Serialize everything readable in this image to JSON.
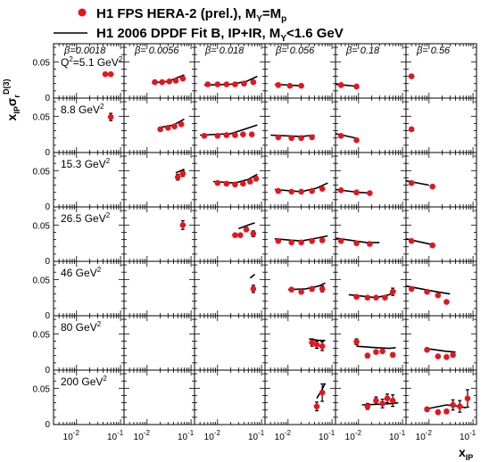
{
  "legend": {
    "data_label": "H1 FPS HERA-2 (prel.),  M",
    "data_sub1": "Y",
    "data_mid": "=M",
    "data_sub2": "p",
    "fit_label": "H1 2006 DPDF Fit B, IP+IR,  M",
    "fit_sub": "Y",
    "fit_tail": "<1.6 GeV"
  },
  "axis": {
    "y_main": "x",
    "y_sub": "IP",
    "y_sigma": "σ",
    "y_sigma_sub": "r",
    "y_sup": "D(3)",
    "x_main": "x",
    "x_sub": "IP",
    "y_ticks": [
      "0",
      "0.05"
    ],
    "x_tick_base": "10",
    "x_tick_exps": [
      "-2",
      "-1"
    ]
  },
  "colors": {
    "data": "#e8141c",
    "fit": "#000000",
    "frame": "#000000"
  },
  "chart_data": {
    "type": "scatter",
    "xscale": "log",
    "x_range": [
      0.003,
      0.12
    ],
    "y_range": [
      0,
      0.075
    ],
    "columns_beta": [
      "β=0.0018",
      "β= 0.0056",
      "β= 0.018",
      "β= 0.056",
      "β= 0.18",
      "β= 0.56"
    ],
    "rows_q2": [
      {
        "label": "Q",
        "sup": "2",
        "tail": "=5.1 GeV",
        "sup2": "2"
      },
      {
        "label": "8.8 GeV",
        "sup": "2"
      },
      {
        "label": "15.3 GeV",
        "sup": "2"
      },
      {
        "label": "26.5 GeV",
        "sup": "2"
      },
      {
        "label": "46 GeV",
        "sup": "2"
      },
      {
        "label": "80 GeV",
        "sup": "2"
      },
      {
        "label": "200 GeV",
        "sup": "2"
      }
    ],
    "cells": [
      {
        "row": 0,
        "col": 0,
        "points": [
          [
            0.045,
            0.033,
            0.002
          ],
          [
            0.06,
            0.033,
            0.002
          ]
        ],
        "fit": []
      },
      {
        "row": 0,
        "col": 1,
        "points": [
          [
            0.015,
            0.022,
            0.0015
          ],
          [
            0.022,
            0.022,
            0.0015
          ],
          [
            0.032,
            0.023,
            0.0015
          ],
          [
            0.045,
            0.024,
            0.0015
          ],
          [
            0.065,
            0.027,
            0.002
          ]
        ],
        "fit": [
          [
            0.013,
            0.021
          ],
          [
            0.03,
            0.023
          ],
          [
            0.07,
            0.032
          ]
        ]
      },
      {
        "row": 0,
        "col": 2,
        "points": [
          [
            0.006,
            0.019,
            0.0015
          ],
          [
            0.01,
            0.019,
            0.0015
          ],
          [
            0.016,
            0.019,
            0.0015
          ],
          [
            0.025,
            0.019,
            0.0015
          ],
          [
            0.04,
            0.02,
            0.0015
          ],
          [
            0.065,
            0.022,
            0.002
          ]
        ],
        "fit": [
          [
            0.005,
            0.018
          ],
          [
            0.02,
            0.019
          ],
          [
            0.045,
            0.023
          ],
          [
            0.08,
            0.03
          ]
        ]
      },
      {
        "row": 0,
        "col": 3,
        "points": [
          [
            0.006,
            0.018,
            0.0015
          ],
          [
            0.011,
            0.017,
            0.0015
          ],
          [
            0.02,
            0.017,
            0.0015
          ]
        ],
        "fit": [
          [
            0.005,
            0.019
          ],
          [
            0.02,
            0.017
          ]
        ]
      },
      {
        "row": 0,
        "col": 4,
        "points": [
          [
            0.004,
            0.018,
            0.0015
          ],
          [
            0.009,
            0.016,
            0.0015
          ]
        ],
        "fit": [
          [
            0.003,
            0.019
          ],
          [
            0.01,
            0.016
          ]
        ]
      },
      {
        "row": 0,
        "col": 5,
        "points": [
          [
            0.004,
            0.03,
            0.002
          ]
        ],
        "fit": []
      },
      {
        "row": 1,
        "col": 0,
        "points": [
          [
            0.06,
            0.049,
            0.005
          ]
        ],
        "fit": []
      },
      {
        "row": 1,
        "col": 1,
        "points": [
          [
            0.02,
            0.032,
            0.002
          ],
          [
            0.03,
            0.034,
            0.002
          ],
          [
            0.042,
            0.036,
            0.002
          ],
          [
            0.06,
            0.039,
            0.002
          ]
        ],
        "fit": [
          [
            0.018,
            0.034
          ],
          [
            0.04,
            0.038
          ],
          [
            0.07,
            0.046
          ]
        ]
      },
      {
        "row": 1,
        "col": 2,
        "points": [
          [
            0.005,
            0.023,
            0.0015
          ],
          [
            0.01,
            0.023,
            0.0015
          ],
          [
            0.016,
            0.024,
            0.0015
          ],
          [
            0.025,
            0.024,
            0.0015
          ],
          [
            0.038,
            0.025,
            0.0015
          ],
          [
            0.06,
            0.025,
            0.0015
          ]
        ],
        "fit": [
          [
            0.004,
            0.024
          ],
          [
            0.02,
            0.026
          ],
          [
            0.045,
            0.033
          ],
          [
            0.08,
            0.038
          ]
        ]
      },
      {
        "row": 1,
        "col": 3,
        "points": [
          [
            0.006,
            0.021,
            0.0015
          ],
          [
            0.012,
            0.02,
            0.0015
          ],
          [
            0.02,
            0.02,
            0.0015
          ],
          [
            0.035,
            0.021,
            0.0015
          ]
        ],
        "fit": [
          [
            0.004,
            0.024
          ],
          [
            0.02,
            0.022
          ],
          [
            0.04,
            0.024
          ]
        ]
      },
      {
        "row": 1,
        "col": 4,
        "points": [
          [
            0.004,
            0.023,
            0.0015
          ],
          [
            0.009,
            0.017,
            0.0015
          ]
        ],
        "fit": [
          [
            0.003,
            0.026
          ],
          [
            0.01,
            0.019
          ]
        ]
      },
      {
        "row": 1,
        "col": 5,
        "points": [
          [
            0.004,
            0.032,
            0.002
          ]
        ],
        "fit": []
      },
      {
        "row": 2,
        "col": 1,
        "points": [
          [
            0.05,
            0.041,
            0.004
          ],
          [
            0.065,
            0.046,
            0.004
          ]
        ],
        "fit": [
          [
            0.045,
            0.047
          ],
          [
            0.07,
            0.052
          ]
        ]
      },
      {
        "row": 2,
        "col": 2,
        "points": [
          [
            0.01,
            0.033,
            0.002
          ],
          [
            0.016,
            0.032,
            0.002
          ],
          [
            0.025,
            0.031,
            0.002
          ],
          [
            0.038,
            0.032,
            0.002
          ],
          [
            0.055,
            0.035,
            0.003
          ],
          [
            0.075,
            0.039,
            0.003
          ]
        ],
        "fit": [
          [
            0.008,
            0.035
          ],
          [
            0.025,
            0.033
          ],
          [
            0.05,
            0.038
          ],
          [
            0.08,
            0.045
          ]
        ]
      },
      {
        "row": 2,
        "col": 3,
        "points": [
          [
            0.006,
            0.022,
            0.0015
          ],
          [
            0.012,
            0.021,
            0.0015
          ],
          [
            0.02,
            0.021,
            0.0015
          ],
          [
            0.035,
            0.022,
            0.0015
          ],
          [
            0.06,
            0.025,
            0.002
          ]
        ],
        "fit": [
          [
            0.005,
            0.024
          ],
          [
            0.02,
            0.021
          ],
          [
            0.045,
            0.026
          ],
          [
            0.08,
            0.033
          ]
        ]
      },
      {
        "row": 2,
        "col": 4,
        "points": [
          [
            0.004,
            0.023,
            0.0015
          ],
          [
            0.009,
            0.02,
            0.0015
          ],
          [
            0.018,
            0.019,
            0.0015
          ]
        ],
        "fit": [
          [
            0.003,
            0.024
          ],
          [
            0.01,
            0.02
          ],
          [
            0.02,
            0.019
          ]
        ]
      },
      {
        "row": 2,
        "col": 5,
        "points": [
          [
            0.004,
            0.033,
            0.002
          ],
          [
            0.012,
            0.028,
            0.002
          ]
        ],
        "fit": [
          [
            0.003,
            0.036
          ],
          [
            0.01,
            0.03
          ]
        ]
      },
      {
        "row": 3,
        "col": 1,
        "points": [
          [
            0.065,
            0.05,
            0.006
          ]
        ],
        "fit": []
      },
      {
        "row": 3,
        "col": 2,
        "points": [
          [
            0.025,
            0.036,
            0.002
          ],
          [
            0.033,
            0.036,
            0.002
          ],
          [
            0.045,
            0.044,
            0.003
          ],
          [
            0.065,
            0.038,
            0.004
          ]
        ],
        "fit": [
          [
            0.03,
            0.045
          ],
          [
            0.05,
            0.05
          ],
          [
            0.07,
            0.053
          ]
        ]
      },
      {
        "row": 3,
        "col": 3,
        "points": [
          [
            0.006,
            0.028,
            0.002
          ],
          [
            0.012,
            0.026,
            0.002
          ],
          [
            0.02,
            0.026,
            0.002
          ],
          [
            0.035,
            0.028,
            0.003
          ],
          [
            0.06,
            0.029,
            0.003
          ]
        ],
        "fit": [
          [
            0.005,
            0.031
          ],
          [
            0.02,
            0.028
          ],
          [
            0.045,
            0.032
          ],
          [
            0.08,
            0.035
          ]
        ]
      },
      {
        "row": 3,
        "col": 4,
        "points": [
          [
            0.004,
            0.028,
            0.002
          ],
          [
            0.009,
            0.025,
            0.002
          ],
          [
            0.018,
            0.024,
            0.002
          ]
        ],
        "fit": [
          [
            0.003,
            0.032
          ],
          [
            0.015,
            0.026
          ],
          [
            0.03,
            0.026
          ]
        ]
      },
      {
        "row": 3,
        "col": 5,
        "points": [
          [
            0.004,
            0.028,
            0.002
          ],
          [
            0.012,
            0.022,
            0.002
          ]
        ],
        "fit": [
          [
            0.003,
            0.031
          ],
          [
            0.012,
            0.023
          ]
        ]
      },
      {
        "row": 4,
        "col": 2,
        "points": [
          [
            0.065,
            0.037,
            0.005
          ]
        ],
        "fit": [
          [
            0.055,
            0.052
          ],
          [
            0.07,
            0.057
          ]
        ]
      },
      {
        "row": 4,
        "col": 3,
        "points": [
          [
            0.012,
            0.036,
            0.002
          ],
          [
            0.02,
            0.033,
            0.003
          ],
          [
            0.035,
            0.037,
            0.003
          ],
          [
            0.06,
            0.037,
            0.004
          ]
        ],
        "fit": [
          [
            0.01,
            0.036
          ],
          [
            0.025,
            0.037
          ],
          [
            0.05,
            0.041
          ],
          [
            0.07,
            0.045
          ]
        ]
      },
      {
        "row": 4,
        "col": 4,
        "points": [
          [
            0.009,
            0.026,
            0.002
          ],
          [
            0.016,
            0.025,
            0.002
          ],
          [
            0.025,
            0.025,
            0.002
          ],
          [
            0.04,
            0.025,
            0.002
          ],
          [
            0.06,
            0.033,
            0.005
          ]
        ],
        "fit": [
          [
            0.006,
            0.029
          ],
          [
            0.025,
            0.025
          ],
          [
            0.05,
            0.029
          ],
          [
            0.07,
            0.035
          ]
        ]
      },
      {
        "row": 4,
        "col": 5,
        "points": [
          [
            0.004,
            0.037,
            0.002
          ],
          [
            0.009,
            0.033,
            0.002
          ],
          [
            0.016,
            0.028,
            0.002
          ],
          [
            0.025,
            0.019,
            0.002
          ]
        ],
        "fit": [
          [
            0.003,
            0.041
          ],
          [
            0.015,
            0.033
          ],
          [
            0.03,
            0.03
          ]
        ]
      },
      {
        "row": 5,
        "col": 3,
        "points": [
          [
            0.035,
            0.038,
            0.005
          ],
          [
            0.045,
            0.035,
            0.005
          ],
          [
            0.06,
            0.033,
            0.006
          ]
        ],
        "fit": [
          [
            0.03,
            0.043
          ],
          [
            0.05,
            0.041
          ],
          [
            0.07,
            0.041
          ]
        ]
      },
      {
        "row": 5,
        "col": 4,
        "points": [
          [
            0.009,
            0.039,
            0.004
          ],
          [
            0.016,
            0.02,
            0.003
          ],
          [
            0.025,
            0.025,
            0.002
          ],
          [
            0.035,
            0.026,
            0.002
          ],
          [
            0.06,
            0.021,
            0.003
          ]
        ],
        "fit": [
          [
            0.009,
            0.033
          ],
          [
            0.025,
            0.031
          ],
          [
            0.05,
            0.03
          ],
          [
            0.07,
            0.031
          ]
        ]
      },
      {
        "row": 5,
        "col": 5,
        "points": [
          [
            0.009,
            0.028,
            0.002
          ],
          [
            0.016,
            0.019,
            0.002
          ],
          [
            0.025,
            0.018,
            0.002
          ],
          [
            0.035,
            0.021,
            0.003
          ]
        ],
        "fit": [
          [
            0.008,
            0.03
          ],
          [
            0.025,
            0.026
          ],
          [
            0.04,
            0.025
          ]
        ]
      },
      {
        "row": 6,
        "col": 3,
        "points": [
          [
            0.045,
            0.025,
            0.006
          ],
          [
            0.06,
            0.044,
            0.012
          ]
        ],
        "fit": [
          [
            0.045,
            0.036
          ],
          [
            0.06,
            0.049
          ],
          [
            0.07,
            0.057
          ]
        ]
      },
      {
        "row": 6,
        "col": 4,
        "points": [
          [
            0.016,
            0.025,
            0.004
          ],
          [
            0.025,
            0.033,
            0.005
          ],
          [
            0.035,
            0.029,
            0.006
          ],
          [
            0.045,
            0.036,
            0.006
          ],
          [
            0.06,
            0.033,
            0.008
          ]
        ],
        "fit": [
          [
            0.012,
            0.027
          ],
          [
            0.03,
            0.028
          ],
          [
            0.06,
            0.029
          ],
          [
            0.08,
            0.03
          ]
        ]
      },
      {
        "row": 6,
        "col": 5,
        "points": [
          [
            0.009,
            0.021,
            0.003
          ],
          [
            0.016,
            0.017,
            0.003
          ],
          [
            0.025,
            0.018,
            0.003
          ],
          [
            0.035,
            0.027,
            0.007
          ],
          [
            0.05,
            0.025,
            0.008
          ],
          [
            0.075,
            0.036,
            0.012
          ]
        ],
        "fit": [
          [
            0.008,
            0.021
          ],
          [
            0.025,
            0.027
          ],
          [
            0.05,
            0.025
          ],
          [
            0.07,
            0.023
          ]
        ]
      }
    ]
  }
}
